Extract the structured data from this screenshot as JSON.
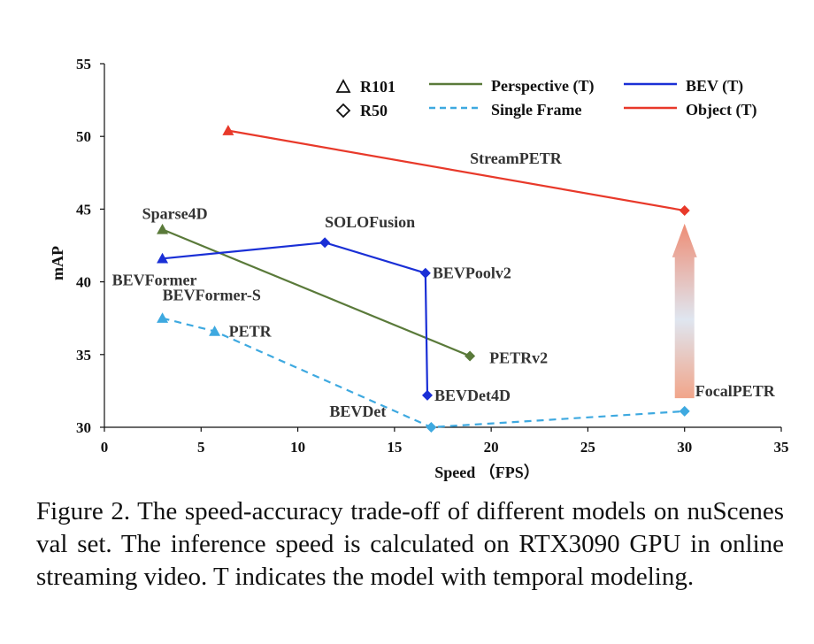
{
  "chart_data": {
    "type": "line",
    "xlabel": "Speed （FPS）",
    "ylabel": "mAP",
    "xlim": [
      0,
      35
    ],
    "ylim": [
      30,
      55
    ],
    "xticks": [
      "0",
      "5",
      "10",
      "15",
      "20",
      "25",
      "30",
      "35"
    ],
    "yticks": [
      "30",
      "35",
      "40",
      "45",
      "50",
      "55"
    ],
    "series": [
      {
        "name": "Perspective (T)",
        "color": "#5a7a3a",
        "dash": "solid",
        "points": [
          {
            "label": "Sparse4D",
            "x": 3.0,
            "y": 43.6,
            "marker": "triangle"
          },
          {
            "label": "PETRv2",
            "x": 18.9,
            "y": 34.9,
            "marker": "diamond"
          }
        ]
      },
      {
        "name": "BEV (T)",
        "color": "#1a2fd6",
        "dash": "solid",
        "points": [
          {
            "label": "BEVFormer",
            "x": 3.0,
            "y": 41.6,
            "marker": "triangle"
          },
          {
            "label": "SOLOFusion",
            "x": 11.4,
            "y": 42.7,
            "marker": "diamond"
          },
          {
            "label": "BEVPoolv2",
            "x": 16.6,
            "y": 40.6,
            "marker": "diamond"
          },
          {
            "label": "BEVDet4D",
            "x": 16.7,
            "y": 32.2,
            "marker": "diamond"
          }
        ]
      },
      {
        "name": "Single Frame",
        "color": "#3ea9e0",
        "dash": "dashed",
        "points": [
          {
            "label": "BEVFormer-S",
            "x": 3.0,
            "y": 37.5,
            "marker": "triangle"
          },
          {
            "label": "PETR",
            "x": 5.7,
            "y": 36.6,
            "marker": "triangle"
          },
          {
            "label": "BEVDet",
            "x": 16.9,
            "y": 30.0,
            "marker": "diamond"
          },
          {
            "label": "FocalPETR",
            "x": 30.0,
            "y": 31.1,
            "marker": "diamond"
          }
        ]
      },
      {
        "name": "Object (T)",
        "color": "#e8392a",
        "dash": "solid",
        "points": [
          {
            "label": "",
            "x": 6.4,
            "y": 50.4,
            "marker": "triangle"
          },
          {
            "label": "",
            "x": 30.0,
            "y": 44.9,
            "marker": "diamond"
          }
        ]
      }
    ],
    "annotations": [
      {
        "text": "StreamPETR",
        "x": 18.9,
        "y": 48.5
      }
    ],
    "arrow": {
      "x": 30.0,
      "from_y": 32.0,
      "to_y": 44.0
    },
    "legend": {
      "placement": "top",
      "markers": [
        {
          "shape": "triangle",
          "label": "R101"
        },
        {
          "shape": "diamond",
          "label": "R50"
        }
      ]
    }
  },
  "caption": "Figure 2. The speed-accuracy trade-off of different models on nuScenes val set. The inference speed is calculated on RTX3090 GPU in online streaming video. T indicates the model with temporal modeling."
}
